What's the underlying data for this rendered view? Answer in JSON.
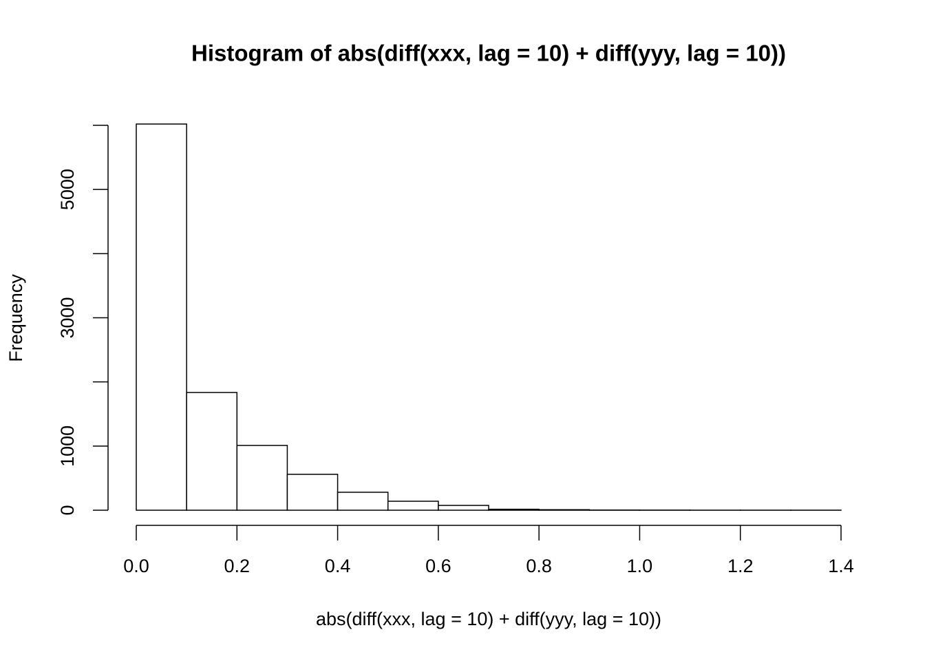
{
  "chart_data": {
    "type": "histogram",
    "title": "Histogram of abs(diff(xxx, lag = 10) + diff(yyy, lag = 10))",
    "x_label": "abs(diff(xxx, lag = 10) + diff(yyy, lag = 10))",
    "y_label": "Frequency",
    "bins": [
      0,
      0.1,
      0.2,
      0.3,
      0.4,
      0.5,
      0.6,
      0.7,
      0.8,
      0.9,
      1.0,
      1.1,
      1.2,
      1.3,
      1.4
    ],
    "counts": [
      6020,
      1835,
      1010,
      560,
      280,
      140,
      75,
      15,
      8,
      3,
      2,
      1,
      1,
      1
    ],
    "color": "#ffffff",
    "xlim": [
      0,
      1.4
    ],
    "xticks": [
      {
        "value": 0,
        "label": "0.0"
      },
      0.2,
      0.4,
      0.6,
      0.8,
      {
        "value": 1.0,
        "label": "1.0"
      },
      1.2,
      1.4
    ],
    "ylim": [
      0,
      6000
    ],
    "yticks": [
      0,
      1000,
      3000,
      5000
    ],
    "yminor_ticks": [
      2000,
      4000,
      6000
    ]
  }
}
